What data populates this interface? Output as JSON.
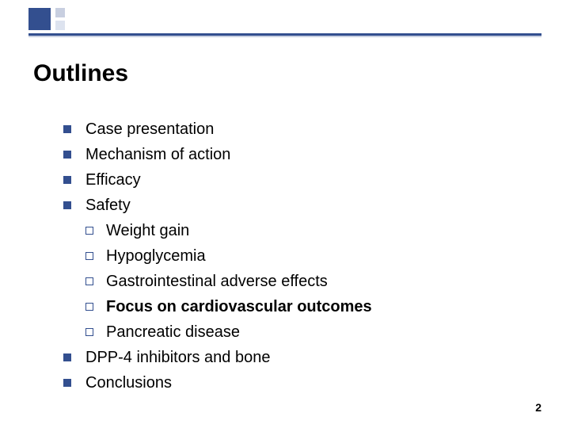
{
  "colors": {
    "accent_dark": "#334f8f",
    "accent_light_1": "#c8cfe0",
    "accent_light_2": "#dde3ef",
    "background": "#ffffff",
    "text": "#000000"
  },
  "typography": {
    "title_fontsize": 30,
    "body_fontsize": 20,
    "page_number_fontsize": 14,
    "font_family": "Arial"
  },
  "title": "Outlines",
  "items": [
    {
      "text": "Case presentation",
      "bold": false
    },
    {
      "text": "Mechanism of action",
      "bold": false
    },
    {
      "text": "Efficacy",
      "bold": false
    },
    {
      "text": "Safety",
      "bold": false,
      "subitems": [
        {
          "text": "Weight gain",
          "bold": false
        },
        {
          "text": "Hypoglycemia",
          "bold": false
        },
        {
          "text": "Gastrointestinal adverse effects",
          "bold": false
        },
        {
          "text": "Focus on cardiovascular outcomes",
          "bold": true
        },
        {
          "text": "Pancreatic disease",
          "bold": false
        }
      ]
    },
    {
      "text": "DPP-4 inhibitors and bone",
      "bold": false
    },
    {
      "text": "Conclusions",
      "bold": false
    }
  ],
  "page_number": "2"
}
